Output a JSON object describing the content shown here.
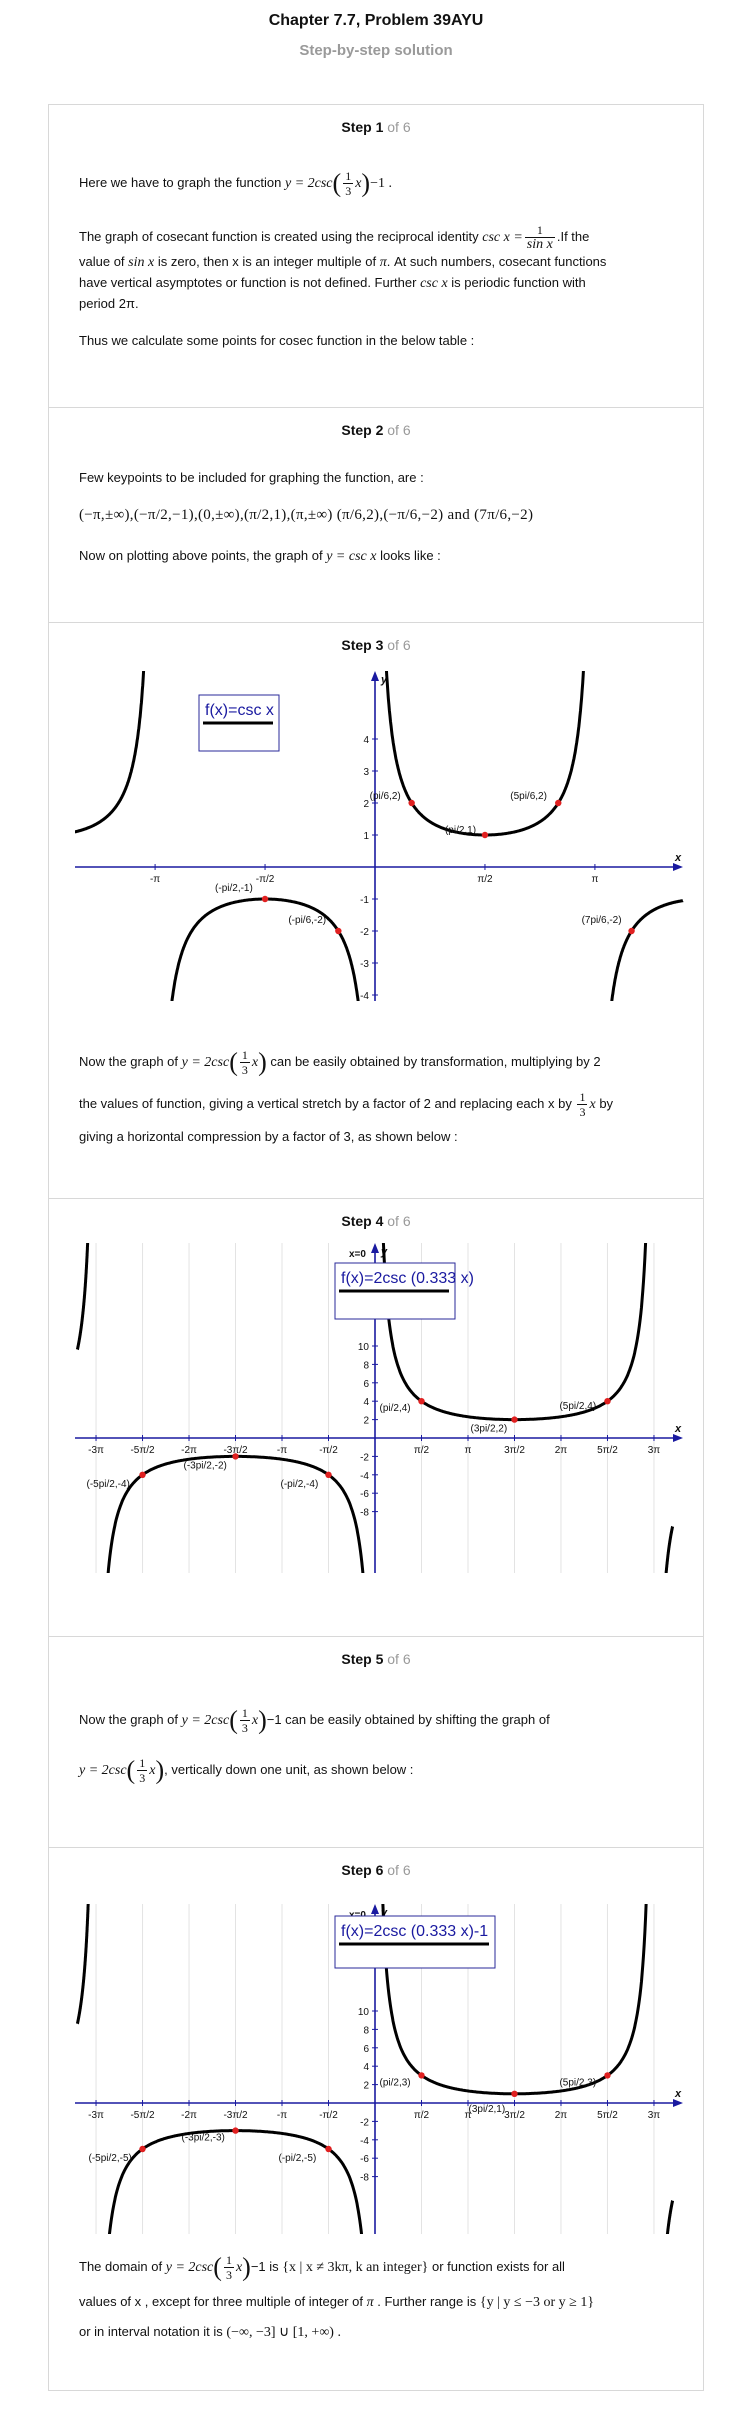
{
  "header": {
    "title": "Chapter 7.7, Problem 39AYU",
    "subtitle": "Step-by-step solution"
  },
  "steps": [
    {
      "label": "Step 1",
      "of": "of 6"
    },
    {
      "label": "Step 2",
      "of": "of 6"
    },
    {
      "label": "Step 3",
      "of": "of 6"
    },
    {
      "label": "Step 4",
      "of": "of 6"
    },
    {
      "label": "Step 5",
      "of": "of 6"
    },
    {
      "label": "Step 6",
      "of": "of 6"
    }
  ],
  "step1": {
    "p1_lead": "Here we have to graph the function",
    "p1_fn": "y = 2csc",
    "p1_tail": "−1 .",
    "p2_a": "The graph of cosecant function is created using the reciprocal identity",
    "p2_identity_lhs": "csc x =",
    "p2_b": ".If the",
    "p2_c": "value of",
    "p2_sinx": "sin x",
    "p2_d": "is zero, then x is an integer multiple of",
    "p2_pi": "π",
    "p2_e": ". At such numbers, cosecant functions",
    "p2_f": "have vertical asymptotes or function is not defined. Further",
    "p2_cscx": "csc x",
    "p2_g": "is periodic function with",
    "p2_h": "period 2π.",
    "p3": "Thus we calculate some points for cosec function in the below table :"
  },
  "step2": {
    "p1": "Few keypoints to be included for graphing the function, are :",
    "points_text": "(−π,±∞),(−π/2,−1),(0,±∞),(π/2,1),(π,±∞) (π/6,2),(−π/6,−2) and (7π/6,−2)",
    "p2_a": "Now on plotting above points, the graph of",
    "p2_fn": "y = csc x",
    "p2_b": "looks like :"
  },
  "step3": {
    "legend": "f(x)=csc x",
    "p1_a": "Now the graph of",
    "p1_fn": "y = 2csc",
    "p1_b": "can be easily obtained by transformation, multiplying by 2",
    "p2_a": "the values of function, giving a vertical stretch by a factor of 2 and replacing each x by",
    "p2_b": "by",
    "p3": "giving a horizontal compression by a factor of 3, as shown below :"
  },
  "step4": {
    "legend": "f(x)=2csc (0.333 x)"
  },
  "step5": {
    "p1_a": "Now the graph of",
    "p1_fn": "y = 2csc",
    "p1_b": "−1 can be easily obtained by shifting the graph of",
    "p2_fn": "y = 2csc",
    "p2_b": ", vertically down one unit, as shown below :"
  },
  "step6": {
    "legend": "f(x)=2csc (0.333 x)-1",
    "p1_a": "The domain of",
    "p1_fn": "y = 2csc",
    "p1_b": "−1 is",
    "p1_set": "{x | x ≠ 3kπ, k an integer}",
    "p1_c": "or function exists for all",
    "p2_a": "values of x , except for three multiple of integer of",
    "p2_pi": "π",
    "p2_b": ". Further range is",
    "p2_set": "{y | y ≤ −3 or y ≥ 1}",
    "p3_a": "or in interval notation it is",
    "p3_interval": "(−∞, −3] ∪ [1, +∞) ."
  },
  "fractions": {
    "one": "1",
    "three": "3",
    "sinx": "sin x"
  },
  "graph1": {
    "legend": "f(x)=csc x",
    "x_axis_label": "x",
    "y_axis_label": "y",
    "x_ticks": [
      "-π",
      "-π/2",
      "π/2",
      "π"
    ],
    "y_ticks": [
      "4",
      "3",
      "2",
      "1",
      "-1",
      "-2",
      "-3",
      "-4"
    ],
    "points": [
      {
        "label": "(-pi/2,-1)"
      },
      {
        "label": "(-pi/6,-2)"
      },
      {
        "label": "(pi/6,2)"
      },
      {
        "label": "(pi/2,1)"
      },
      {
        "label": "(5pi/6,2)"
      },
      {
        "label": "(7pi/6,-2)"
      }
    ]
  },
  "graph2": {
    "legend": "f(x)=2csc (0.333 x)",
    "x_axis_label": "x",
    "y_axis_label": "y",
    "corner_label": "x=0",
    "x_ticks": [
      "-3π",
      "-5π/2",
      "-2π",
      "-3π/2",
      "-π",
      "-π/2",
      "π/2",
      "π",
      "3π/2",
      "2π",
      "5π/2",
      "3π"
    ],
    "y_ticks": [
      "10",
      "8",
      "6",
      "4",
      "2",
      "-2",
      "-4",
      "-6",
      "-8"
    ],
    "points": [
      {
        "label": "(pi/2,4)"
      },
      {
        "label": "(3pi/2,2)"
      },
      {
        "label": "(5pi/2,4)"
      },
      {
        "label": "(-3pi/2,-2)"
      },
      {
        "label": "(-5pi/2,-4)"
      },
      {
        "label": "(-pi/2,-4)"
      }
    ]
  },
  "graph3": {
    "legend": "f(x)=2csc (0.333 x)-1",
    "x_axis_label": "x",
    "y_axis_label": "y",
    "corner_label": "x=0",
    "x_ticks": [
      "-3π",
      "-5π/2",
      "-2π",
      "-3π/2",
      "-π",
      "-π/2",
      "π/2",
      "π",
      "3π/2",
      "2π",
      "5π/2",
      "3π"
    ],
    "y_ticks": [
      "10",
      "8",
      "6",
      "4",
      "2",
      "-2",
      "-4",
      "-6",
      "-8"
    ],
    "points": [
      {
        "label": "(pi/2,3)"
      },
      {
        "label": "(3pi/2,1)"
      },
      {
        "label": "(5pi/2,3)"
      },
      {
        "label": "(-3pi/2,-3)"
      },
      {
        "label": "(-5pi/2,-5)"
      },
      {
        "label": "(-pi/2,-5)"
      }
    ]
  }
}
